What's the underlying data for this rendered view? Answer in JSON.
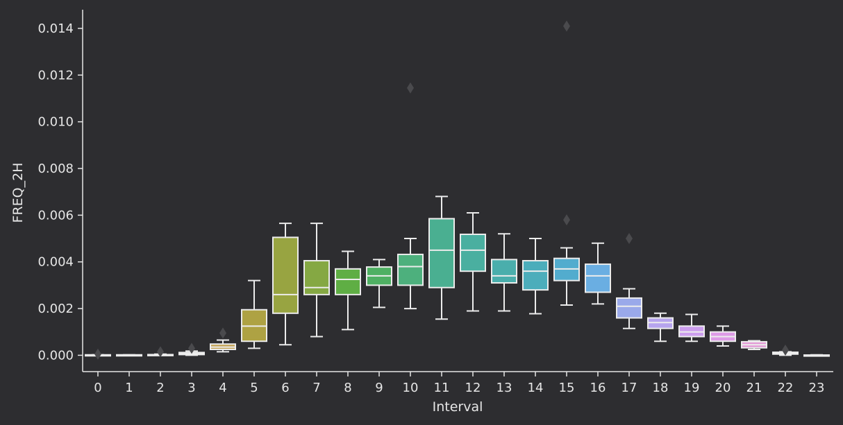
{
  "chart_data": {
    "type": "box",
    "xlabel": "Interval",
    "ylabel": "FREQ_2H",
    "ylim": [
      -0.0007,
      0.0148
    ],
    "yticks": [
      0.0,
      0.002,
      0.004,
      0.006,
      0.008,
      0.01,
      0.012,
      0.014
    ],
    "ytick_labels": [
      "0.000",
      "0.002",
      "0.004",
      "0.006",
      "0.008",
      "0.010",
      "0.012",
      "0.014"
    ],
    "categories": [
      "0",
      "1",
      "2",
      "3",
      "4",
      "5",
      "6",
      "7",
      "8",
      "9",
      "10",
      "11",
      "12",
      "13",
      "14",
      "15",
      "16",
      "17",
      "18",
      "19",
      "20",
      "21",
      "22",
      "23"
    ],
    "grid": false,
    "boxes": [
      {
        "category": "0",
        "whisker_low": 0.0,
        "q1": 0.0,
        "median": 0.0,
        "q3": 2e-05,
        "whisker_high": 2e-05,
        "outliers": [
          5e-05
        ],
        "color": "#d99a8f"
      },
      {
        "category": "1",
        "whisker_low": 0.0,
        "q1": 0.0,
        "median": 0.0,
        "q3": 2e-05,
        "whisker_high": 2e-05,
        "outliers": [],
        "color": "#d89b80"
      },
      {
        "category": "2",
        "whisker_low": 0.0,
        "q1": 0.0,
        "median": 0.0,
        "q3": 3e-05,
        "whisker_high": 5e-05,
        "outliers": [
          0.00015
        ],
        "color": "#d49c6e"
      },
      {
        "category": "3",
        "whisker_low": 0.0,
        "q1": 3e-05,
        "median": 8e-05,
        "q3": 0.00012,
        "whisker_high": 0.00018,
        "outliers": [
          0.0003
        ],
        "color": "#cd9e5f"
      },
      {
        "category": "4",
        "whisker_low": 0.00015,
        "q1": 0.00025,
        "median": 0.00035,
        "q3": 0.00048,
        "whisker_high": 0.00065,
        "outliers": [
          0.00095
        ],
        "color": "#c3a14f"
      },
      {
        "category": "5",
        "whisker_low": 0.0003,
        "q1": 0.0006,
        "median": 0.00125,
        "q3": 0.00195,
        "whisker_high": 0.0032,
        "outliers": [],
        "color": "#aea243"
      },
      {
        "category": "6",
        "whisker_low": 0.00045,
        "q1": 0.0018,
        "median": 0.0026,
        "q3": 0.00505,
        "whisker_high": 0.00565,
        "outliers": [],
        "color": "#98a441"
      },
      {
        "category": "7",
        "whisker_low": 0.0008,
        "q1": 0.0026,
        "median": 0.0029,
        "q3": 0.00405,
        "whisker_high": 0.00565,
        "outliers": [],
        "color": "#85a843"
      },
      {
        "category": "8",
        "whisker_low": 0.0011,
        "q1": 0.0026,
        "median": 0.00325,
        "q3": 0.0037,
        "whisker_high": 0.00445,
        "outliers": [],
        "color": "#5fae44"
      },
      {
        "category": "9",
        "whisker_low": 0.00205,
        "q1": 0.003,
        "median": 0.0034,
        "q3": 0.00378,
        "whisker_high": 0.0041,
        "outliers": [],
        "color": "#4fb063"
      },
      {
        "category": "10",
        "whisker_low": 0.002,
        "q1": 0.003,
        "median": 0.0038,
        "q3": 0.00432,
        "whisker_high": 0.005,
        "outliers": [
          0.01145
        ],
        "color": "#4db07d"
      },
      {
        "category": "11",
        "whisker_low": 0.00155,
        "q1": 0.0029,
        "median": 0.0045,
        "q3": 0.00585,
        "whisker_high": 0.0068,
        "outliers": [],
        "color": "#4aaf91"
      },
      {
        "category": "12",
        "whisker_low": 0.0019,
        "q1": 0.0036,
        "median": 0.0045,
        "q3": 0.00518,
        "whisker_high": 0.0061,
        "outliers": [],
        "color": "#4aafa0"
      },
      {
        "category": "13",
        "whisker_low": 0.0019,
        "q1": 0.0031,
        "median": 0.0034,
        "q3": 0.0041,
        "whisker_high": 0.0052,
        "outliers": [],
        "color": "#4aaeac"
      },
      {
        "category": "14",
        "whisker_low": 0.00178,
        "q1": 0.0028,
        "median": 0.0036,
        "q3": 0.00405,
        "whisker_high": 0.005,
        "outliers": [],
        "color": "#4cadbb"
      },
      {
        "category": "15",
        "whisker_low": 0.00215,
        "q1": 0.0032,
        "median": 0.0037,
        "q3": 0.00415,
        "whisker_high": 0.0046,
        "outliers": [
          0.0058,
          0.0141
        ],
        "color": "#52acce"
      },
      {
        "category": "16",
        "whisker_low": 0.0022,
        "q1": 0.0027,
        "median": 0.0034,
        "q3": 0.0039,
        "whisker_high": 0.0048,
        "outliers": [],
        "color": "#6aaee2"
      },
      {
        "category": "17",
        "whisker_low": 0.00115,
        "q1": 0.0016,
        "median": 0.0021,
        "q3": 0.00245,
        "whisker_high": 0.00285,
        "outliers": [
          0.005
        ],
        "color": "#9aa9ea"
      },
      {
        "category": "18",
        "whisker_low": 0.0006,
        "q1": 0.00115,
        "median": 0.0014,
        "q3": 0.0016,
        "whisker_high": 0.0018,
        "outliers": [],
        "color": "#b6a4ee"
      },
      {
        "category": "19",
        "whisker_low": 0.0006,
        "q1": 0.0008,
        "median": 0.001,
        "q3": 0.00125,
        "whisker_high": 0.00175,
        "outliers": [],
        "color": "#cc9eee"
      },
      {
        "category": "20",
        "whisker_low": 0.0004,
        "q1": 0.0006,
        "median": 0.0008,
        "q3": 0.001,
        "whisker_high": 0.00125,
        "outliers": [],
        "color": "#dd9be6"
      },
      {
        "category": "21",
        "whisker_low": 0.00025,
        "q1": 0.00032,
        "median": 0.00045,
        "q3": 0.00058,
        "whisker_high": 0.00062,
        "outliers": [],
        "color": "#e39ad6"
      },
      {
        "category": "22",
        "whisker_low": 0.0,
        "q1": 5e-05,
        "median": 9e-05,
        "q3": 0.00013,
        "whisker_high": 0.00015,
        "outliers": [
          0.00022
        ],
        "color": "#e49bc2"
      },
      {
        "category": "23",
        "whisker_low": 0.0,
        "q1": 0.0,
        "median": 0.0,
        "q3": 1e-05,
        "whisker_high": 2e-05,
        "outliers": [],
        "color": "#e39db0"
      }
    ]
  }
}
